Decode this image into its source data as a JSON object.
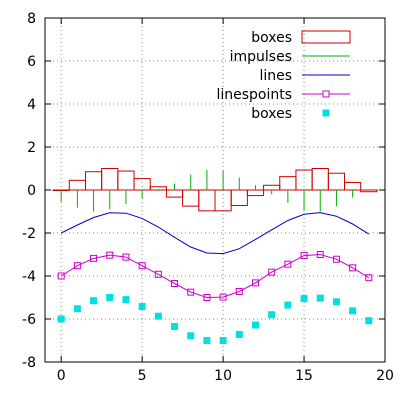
{
  "chart_data": {
    "type": "line",
    "title": "",
    "xlabel": "",
    "ylabel": "",
    "xlim": [
      -1,
      20
    ],
    "ylim": [
      -8,
      8
    ],
    "xticks": [
      0,
      5,
      10,
      15,
      20
    ],
    "yticks": [
      -8,
      -6,
      -4,
      -2,
      0,
      2,
      4,
      6,
      8
    ],
    "grid": true,
    "legend_position": "top-right",
    "x": [
      0,
      1,
      2,
      3,
      4,
      5,
      6,
      7,
      8,
      9,
      10,
      11,
      12,
      13,
      14,
      15,
      16,
      17,
      18,
      19
    ],
    "series": [
      {
        "name": "boxes",
        "style": "boxes",
        "color": "#cc0000",
        "values": [
          0,
          0.45,
          0.85,
          1.0,
          0.88,
          0.53,
          0.15,
          -0.33,
          -0.75,
          -0.97,
          -0.97,
          -0.72,
          -0.26,
          0.22,
          0.62,
          0.93,
          1.0,
          0.78,
          0.35,
          -0.08
        ]
      },
      {
        "name": "impulses",
        "style": "impulses",
        "color": "#00b000",
        "values": [
          -0.55,
          -0.82,
          -1.0,
          -0.9,
          -0.65,
          -0.4,
          -0.05,
          0.3,
          0.72,
          0.93,
          0.9,
          0.58,
          0.22,
          -0.2,
          -0.6,
          -0.97,
          -1.0,
          -0.75,
          -0.35,
          0
        ]
      },
      {
        "name": "lines",
        "style": "lines",
        "color": "#0000cc",
        "values": [
          -2.0,
          -1.63,
          -1.28,
          -1.06,
          -1.08,
          -1.32,
          -1.72,
          -2.2,
          -2.65,
          -2.93,
          -2.96,
          -2.73,
          -2.3,
          -1.85,
          -1.42,
          -1.13,
          -1.05,
          -1.22,
          -1.58,
          -2.05
        ]
      },
      {
        "name": "linespoints",
        "style": "linespoints",
        "color": "#cc00cc",
        "values": [
          -4.0,
          -3.52,
          -3.18,
          -3.03,
          -3.12,
          -3.52,
          -3.92,
          -4.35,
          -4.75,
          -5.0,
          -4.98,
          -4.72,
          -4.32,
          -3.82,
          -3.45,
          -3.05,
          -3.0,
          -3.22,
          -3.62,
          -4.08
        ]
      },
      {
        "name": "boxes",
        "style": "points",
        "color": "#00e0e0",
        "values": [
          -6.0,
          -5.52,
          -5.15,
          -5.0,
          -5.1,
          -5.42,
          -5.87,
          -6.35,
          -6.78,
          -7.0,
          -7.0,
          -6.72,
          -6.28,
          -5.8,
          -5.35,
          -5.05,
          -5.03,
          -5.2,
          -5.62,
          -6.08
        ]
      }
    ]
  }
}
